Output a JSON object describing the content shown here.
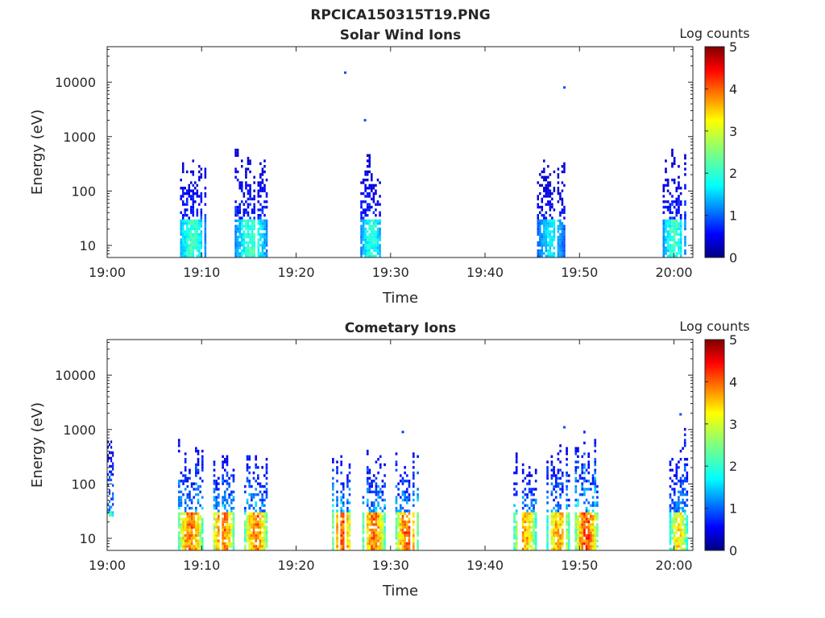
{
  "figure": {
    "title": "RPCICA150315T19.PNG"
  },
  "chart_data": [
    {
      "type": "heatmap",
      "title": "Solar Wind Ions",
      "xlabel": "Time",
      "ylabel": "Energy (eV)",
      "x_ticks": [
        "19:00",
        "19:10",
        "19:20",
        "19:30",
        "19:40",
        "19:50",
        "20:00"
      ],
      "x_tick_minutes": [
        0,
        10,
        20,
        30,
        40,
        50,
        60
      ],
      "xlim_minutes": [
        0,
        62
      ],
      "y_scale": "log",
      "y_ticks": [
        "10",
        "100",
        "1000",
        "10000"
      ],
      "y_tick_values": [
        10,
        100,
        1000,
        10000
      ],
      "ylim": [
        6,
        45000
      ],
      "colorbar": {
        "label": "Log counts",
        "ticks": [
          "0",
          "1",
          "2",
          "3",
          "4",
          "5"
        ],
        "range": [
          0,
          5
        ],
        "colormap": "jet"
      },
      "grid": false,
      "bursts": [
        {
          "t_start": 7.5,
          "t_end": 10.5,
          "e_min": 6,
          "e_max": 750,
          "peak_log_counts": 2.2
        },
        {
          "t_start": 13.5,
          "t_end": 17.0,
          "e_min": 6,
          "e_max": 700,
          "peak_log_counts": 2.2
        },
        {
          "t_start": 26.8,
          "t_end": 29.2,
          "e_min": 6,
          "e_max": 600,
          "peak_log_counts": 2.1
        },
        {
          "t_start": 45.5,
          "t_end": 48.5,
          "e_min": 6,
          "e_max": 600,
          "peak_log_counts": 1.8
        },
        {
          "t_start": 58.8,
          "t_end": 61.3,
          "e_min": 6,
          "e_max": 800,
          "peak_log_counts": 2.2
        }
      ],
      "isolated_points": [
        {
          "t": 25.2,
          "e": 15000,
          "log_counts": 1.0
        },
        {
          "t": 27.3,
          "e": 2000,
          "log_counts": 1.0
        },
        {
          "t": 48.4,
          "e": 8000,
          "log_counts": 1.0
        }
      ]
    },
    {
      "type": "heatmap",
      "title": "Cometary Ions",
      "xlabel": "Time",
      "ylabel": "Energy (eV)",
      "x_ticks": [
        "19:00",
        "19:10",
        "19:20",
        "19:30",
        "19:40",
        "19:50",
        "20:00"
      ],
      "x_tick_minutes": [
        0,
        10,
        20,
        30,
        40,
        50,
        60
      ],
      "xlim_minutes": [
        0,
        62
      ],
      "y_scale": "log",
      "y_ticks": [
        "10",
        "100",
        "1000",
        "10000"
      ],
      "y_tick_values": [
        10,
        100,
        1000,
        10000
      ],
      "ylim": [
        6,
        45000
      ],
      "colorbar": {
        "label": "Log counts",
        "ticks": [
          "0",
          "1",
          "2",
          "3",
          "4",
          "5"
        ],
        "range": [
          0,
          5
        ],
        "colormap": "jet"
      },
      "grid": false,
      "bursts": [
        {
          "t_start": 0.0,
          "t_end": 0.7,
          "e_min": 25,
          "e_max": 800,
          "peak_log_counts": 2.3
        },
        {
          "t_start": 7.5,
          "t_end": 10.2,
          "e_min": 6,
          "e_max": 700,
          "peak_log_counts": 3.9
        },
        {
          "t_start": 11.0,
          "t_end": 13.5,
          "e_min": 6,
          "e_max": 500,
          "peak_log_counts": 3.9
        },
        {
          "t_start": 14.5,
          "t_end": 17.0,
          "e_min": 6,
          "e_max": 600,
          "peak_log_counts": 3.9
        },
        {
          "t_start": 23.8,
          "t_end": 26.0,
          "e_min": 6,
          "e_max": 650,
          "peak_log_counts": 4.0
        },
        {
          "t_start": 27.0,
          "t_end": 29.5,
          "e_min": 6,
          "e_max": 550,
          "peak_log_counts": 3.9
        },
        {
          "t_start": 30.5,
          "t_end": 33.0,
          "e_min": 6,
          "e_max": 550,
          "peak_log_counts": 4.0
        },
        {
          "t_start": 43.0,
          "t_end": 45.5,
          "e_min": 6,
          "e_max": 550,
          "peak_log_counts": 3.6
        },
        {
          "t_start": 46.5,
          "t_end": 49.0,
          "e_min": 6,
          "e_max": 1100,
          "peak_log_counts": 3.6
        },
        {
          "t_start": 49.5,
          "t_end": 52.0,
          "e_min": 6,
          "e_max": 1100,
          "peak_log_counts": 4.1
        },
        {
          "t_start": 59.5,
          "t_end": 61.5,
          "e_min": 6,
          "e_max": 1900,
          "peak_log_counts": 3.3
        }
      ],
      "isolated_points": [
        {
          "t": 31.3,
          "e": 900,
          "log_counts": 0.9
        },
        {
          "t": 48.4,
          "e": 1100,
          "log_counts": 1.0
        },
        {
          "t": 60.7,
          "e": 1900,
          "log_counts": 1.0
        }
      ]
    }
  ]
}
